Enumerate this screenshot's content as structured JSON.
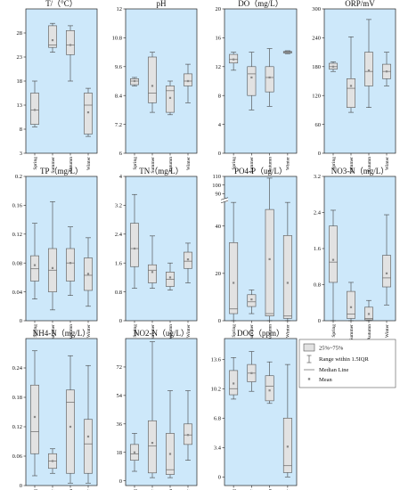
{
  "colors": {
    "panel_bg": "#cde8fa",
    "box_fill": "#e2e2e2",
    "box_stroke": "#555555",
    "whisker": "#444444",
    "median": "#777777",
    "mean": "#888888"
  },
  "legend": {
    "box": "25%~75%",
    "range": "Range within 1.5IQR",
    "median": "Median Line",
    "mean": "Mean"
  },
  "chart_data": [
    {
      "type": "box",
      "title": "T/（°C）",
      "categories": [
        "Spring",
        "Summer",
        "Autumn",
        "Winter"
      ],
      "yticks": [
        3,
        8,
        13,
        18,
        23,
        28
      ],
      "ylim": [
        3,
        33
      ],
      "boxes": [
        {
          "min": 8.5,
          "q1": 9,
          "median": 12,
          "q3": 15.5,
          "max": 18,
          "mean": 12
        },
        {
          "min": 24,
          "q1": 25,
          "median": 25.5,
          "q3": 29.5,
          "max": 30,
          "mean": 26.5
        },
        {
          "min": 18,
          "q1": 23.5,
          "median": 25.5,
          "q3": 28.5,
          "max": 29.5,
          "mean": 25.5
        },
        {
          "min": 6.5,
          "q1": 7,
          "median": 13,
          "q3": 15.5,
          "max": 16.5,
          "mean": 11.5
        }
      ]
    },
    {
      "type": "box",
      "title": "pH",
      "categories": [
        "Spring",
        "Summer",
        "Autumn",
        "Winter"
      ],
      "yticks": [
        6.0,
        7.2,
        8.4,
        9.6,
        10.8,
        12.0
      ],
      "ylim": [
        6.0,
        12.0
      ],
      "boxes": [
        {
          "min": 8.8,
          "q1": 8.85,
          "median": 9.0,
          "q3": 9.1,
          "max": 9.15,
          "mean": 9.0
        },
        {
          "min": 7.7,
          "q1": 8.1,
          "median": 8.5,
          "q3": 10.0,
          "max": 10.2,
          "mean": 8.8
        },
        {
          "min": 7.6,
          "q1": 7.7,
          "median": 8.6,
          "q3": 8.8,
          "max": 9.0,
          "mean": 8.3
        },
        {
          "min": 8.1,
          "q1": 8.8,
          "median": 9.0,
          "q3": 9.3,
          "max": 9.7,
          "mean": 9.0
        }
      ]
    },
    {
      "type": "box",
      "title": "DO（mg/L）",
      "categories": [
        "Spring",
        "Summer",
        "Autumn",
        "Winter"
      ],
      "yticks": [
        0,
        4,
        8,
        12,
        16,
        20
      ],
      "ylim": [
        0,
        20
      ],
      "boxes": [
        {
          "min": 11.5,
          "q1": 12.5,
          "median": 13,
          "q3": 13.7,
          "max": 14,
          "mean": 13
        },
        {
          "min": 6,
          "q1": 8,
          "median": 11,
          "q3": 12,
          "max": 14,
          "mean": 10.5
        },
        {
          "min": 6.5,
          "q1": 8.5,
          "median": 10.5,
          "q3": 12,
          "max": 14.5,
          "mean": 10.5
        },
        {
          "min": 13.8,
          "q1": 13.9,
          "median": 14,
          "q3": 14.1,
          "max": 14.2,
          "mean": 14
        }
      ]
    },
    {
      "type": "box",
      "title": "ORP/mV",
      "categories": [
        "Spring",
        "Summer",
        "Autumn",
        "Winter"
      ],
      "yticks": [
        0,
        60,
        120,
        180,
        240,
        300
      ],
      "ylim": [
        0,
        300
      ],
      "boxes": [
        {
          "min": 170,
          "q1": 175,
          "median": 180,
          "q3": 187,
          "max": 190,
          "mean": 180
        },
        {
          "min": 85,
          "q1": 95,
          "median": 135,
          "q3": 155,
          "max": 242,
          "mean": 140
        },
        {
          "min": 95,
          "q1": 140,
          "median": 170,
          "q3": 210,
          "max": 278,
          "mean": 172
        },
        {
          "min": 140,
          "q1": 155,
          "median": 170,
          "q3": 185,
          "max": 210,
          "mean": 170
        }
      ]
    },
    {
      "type": "box",
      "title": "TP（mg/L）",
      "categories": [
        "Spring",
        "Summer",
        "Autumn",
        "Winter"
      ],
      "yticks": [
        0,
        0.04,
        0.08,
        0.12,
        0.16,
        0.2
      ],
      "ylim": [
        0,
        0.2
      ],
      "boxes": [
        {
          "min": 0.03,
          "q1": 0.055,
          "median": 0.072,
          "q3": 0.09,
          "max": 0.135,
          "mean": 0.077
        },
        {
          "min": 0.015,
          "q1": 0.04,
          "median": 0.07,
          "q3": 0.1,
          "max": 0.165,
          "mean": 0.073
        },
        {
          "min": 0.035,
          "q1": 0.055,
          "median": 0.08,
          "q3": 0.1,
          "max": 0.13,
          "mean": 0.08
        },
        {
          "min": 0.02,
          "q1": 0.042,
          "median": 0.063,
          "q3": 0.087,
          "max": 0.115,
          "mean": 0.065
        }
      ]
    },
    {
      "type": "box",
      "title": "TN（mg/L）",
      "categories": [
        "Spring",
        "Summer",
        "Autumn",
        "Winter"
      ],
      "yticks": [
        0.0,
        0.8,
        1.6,
        2.4,
        3.2,
        4.0
      ],
      "ylim": [
        0,
        4.0
      ],
      "boxes": [
        {
          "min": 0.9,
          "q1": 1.5,
          "median": 2.0,
          "q3": 2.7,
          "max": 3.5,
          "mean": 2.0
        },
        {
          "min": 0.9,
          "q1": 1.05,
          "median": 1.4,
          "q3": 1.55,
          "max": 2.35,
          "mean": 1.35
        },
        {
          "min": 0.85,
          "q1": 0.95,
          "median": 1.15,
          "q3": 1.35,
          "max": 1.6,
          "mean": 1.2
        },
        {
          "min": 1.05,
          "q1": 1.45,
          "median": 1.65,
          "q3": 1.9,
          "max": 2.15,
          "mean": 1.7
        }
      ]
    },
    {
      "type": "box",
      "title": "PO4-P（ug/L）",
      "categories": [
        "Spring",
        "Summer",
        "Autumn",
        "Winter"
      ],
      "yticks": [
        0,
        20,
        40,
        90,
        100,
        110
      ],
      "ylim": [
        0,
        110
      ],
      "boxes": [
        {
          "min": 0,
          "q1": 3,
          "median": 5,
          "q3": 33,
          "max": 50,
          "mean": 16
        },
        {
          "min": 3,
          "q1": 6,
          "median": 8,
          "q3": 11,
          "max": 13,
          "mean": 9
        },
        {
          "min": 0,
          "q1": 2,
          "median": 3,
          "q3": 47,
          "max": 108,
          "mean": 26
        },
        {
          "min": 0,
          "q1": 1,
          "median": 2,
          "q3": 36,
          "max": 50,
          "mean": 16
        }
      ]
    },
    {
      "type": "box",
      "title": "NO3-N（mg/L）",
      "categories": [
        "Spring",
        "Summer",
        "Autumn",
        "Winter"
      ],
      "yticks": [
        0,
        0.8,
        1.6,
        2.4,
        3.2
      ],
      "ylim": [
        0,
        3.2
      ],
      "boxes": [
        {
          "min": 0.0,
          "q1": 0.85,
          "median": 1.3,
          "q3": 2.1,
          "max": 2.45,
          "mean": 1.35
        },
        {
          "min": 0.0,
          "q1": 0.05,
          "median": 0.15,
          "q3": 0.65,
          "max": 0.85,
          "mean": 0.3
        },
        {
          "min": 0.0,
          "q1": 0.02,
          "median": 0.05,
          "q3": 0.3,
          "max": 0.45,
          "mean": 0.15
        },
        {
          "min": 0.35,
          "q1": 0.75,
          "median": 0.95,
          "q3": 1.45,
          "max": 2.35,
          "mean": 1.05
        }
      ]
    },
    {
      "type": "box",
      "title": "NH4-N（mg/L）",
      "categories": [
        "Spring",
        "Summer",
        "Autumn",
        "Winter"
      ],
      "yticks": [
        0,
        0.06,
        0.12,
        0.18,
        0.24
      ],
      "ylim": [
        0,
        0.3
      ],
      "boxes": [
        {
          "min": 0.02,
          "q1": 0.065,
          "median": 0.11,
          "q3": 0.205,
          "max": 0.275,
          "mean": 0.14
        },
        {
          "min": 0.025,
          "q1": 0.035,
          "median": 0.05,
          "q3": 0.065,
          "max": 0.075,
          "mean": 0.05
        },
        {
          "min": 0.005,
          "q1": 0.025,
          "median": 0.17,
          "q3": 0.195,
          "max": 0.265,
          "mean": 0.12
        },
        {
          "min": 0.005,
          "q1": 0.025,
          "median": 0.085,
          "q3": 0.135,
          "max": 0.245,
          "mean": 0.1
        }
      ]
    },
    {
      "type": "box",
      "title": "NO2-N（ug/L）",
      "categories": [
        "Spring",
        "Summer",
        "Autumn",
        "Winter"
      ],
      "yticks": [
        0,
        18,
        36,
        54,
        72
      ],
      "ylim": [
        -3,
        90
      ],
      "boxes": [
        {
          "min": 6,
          "q1": 13,
          "median": 17,
          "q3": 23,
          "max": 30,
          "mean": 18
        },
        {
          "min": 2,
          "q1": 5,
          "median": 22,
          "q3": 38,
          "max": 88,
          "mean": 24
        },
        {
          "min": 2,
          "q1": 4,
          "median": 7,
          "q3": 30,
          "max": 57,
          "mean": 17
        },
        {
          "min": 13,
          "q1": 23,
          "median": 29,
          "q3": 36,
          "max": 57,
          "mean": 29
        }
      ]
    },
    {
      "type": "box",
      "title": "DOC（ppm）",
      "categories": [
        "Spring",
        "Summer",
        "Autumn",
        "Winter"
      ],
      "yticks": [
        0.0,
        3.4,
        6.8,
        10.2,
        13.6
      ],
      "ylim": [
        -1,
        16
      ],
      "boxes": [
        {
          "min": 9,
          "q1": 9.5,
          "median": 10.2,
          "q3": 12.3,
          "max": 13.8,
          "mean": 10.8
        },
        {
          "min": 9.9,
          "q1": 11,
          "median": 12,
          "q3": 13,
          "max": 14.5,
          "mean": 12
        },
        {
          "min": 8.5,
          "q1": 8.8,
          "median": 10.5,
          "q3": 11.7,
          "max": 13.3,
          "mean": 10
        },
        {
          "min": 0,
          "q1": 0.5,
          "median": 1.3,
          "q3": 6.8,
          "max": 13,
          "mean": 3.5
        }
      ]
    }
  ]
}
